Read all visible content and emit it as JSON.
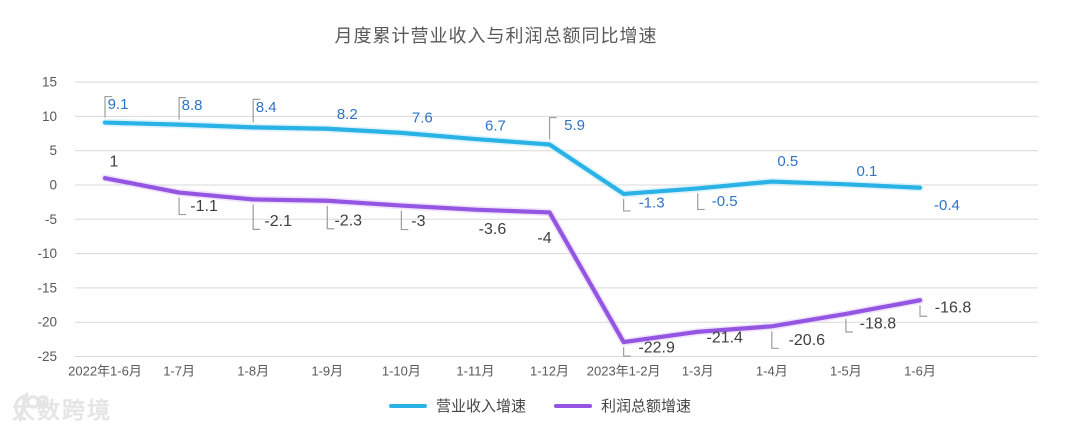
{
  "title": "月度累计营业收入与利润总额同比增速",
  "watermark": {
    "brand": "大数跨境",
    "logo_icon": "swirl-100-logo"
  },
  "chart_data": {
    "type": "line",
    "title": "月度累计营业收入与利润总额同比增速",
    "categories": [
      "2022年1-6月",
      "1-7月",
      "1-8月",
      "1-9月",
      "1-10月",
      "1-11月",
      "1-12月",
      "2023年1-2月",
      "1-3月",
      "1-4月",
      "1-5月",
      "1-6月"
    ],
    "series": [
      {
        "name": "营业收入增速",
        "color": "#29B2E6",
        "halo_color": "#C5EAF8",
        "label_color": "#2E74C4",
        "values": [
          9.1,
          8.8,
          8.4,
          8.2,
          7.6,
          6.7,
          5.9,
          -1.3,
          -0.5,
          0.5,
          0.1,
          -0.4
        ]
      },
      {
        "name": "利润总额增速",
        "color": "#9455E3",
        "halo_color": "#E2CEF8",
        "label_color": "#3F3F3F",
        "values": [
          1,
          -1.1,
          -2.1,
          -2.3,
          -3,
          -3.6,
          -4,
          -22.9,
          -21.4,
          -20.6,
          -18.8,
          -16.8
        ]
      }
    ],
    "yticks": [
      15,
      10,
      5,
      0,
      -5,
      -10,
      -15,
      -20,
      -25
    ],
    "ylim": [
      -25,
      15
    ],
    "grid": true,
    "legend_position": "bottom",
    "axis_text_color": "#595959",
    "grid_color": "#D9D9D9",
    "leader_color": "#9E9E9E",
    "xlabel": "",
    "ylabel": ""
  }
}
